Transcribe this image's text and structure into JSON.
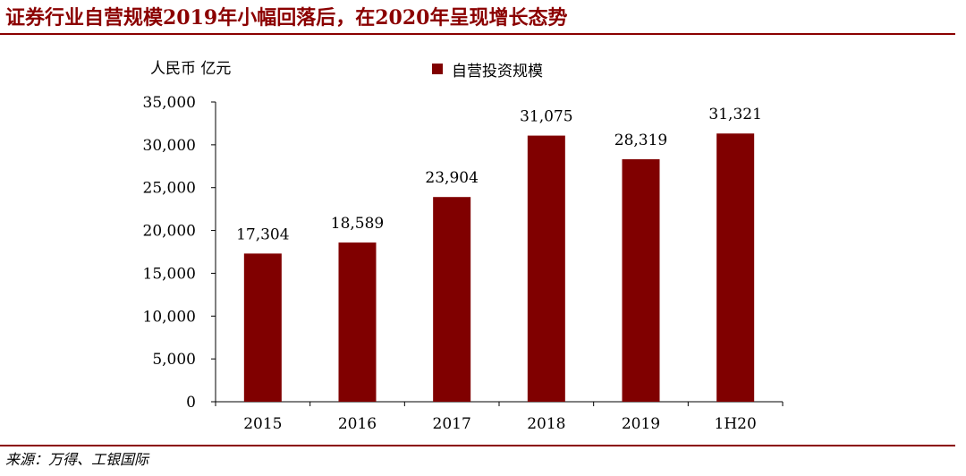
{
  "header": {
    "title": "证券行业自营规模2019年小幅回落后，在2020年呈现增长态势"
  },
  "footer": {
    "source": "来源：万得、工银国际"
  },
  "colors": {
    "accent": "#8b0000",
    "bar": "#800000"
  },
  "chart_data": {
    "type": "bar",
    "title": "证券行业自营规模2019年小幅回落后，在2020年呈现增长态势",
    "ylabel": "人民币 亿元",
    "xlabel": "",
    "categories": [
      "2015",
      "2016",
      "2017",
      "2018",
      "2019",
      "1H20"
    ],
    "series": [
      {
        "name": "自营投资规模",
        "values": [
          17304,
          18589,
          23904,
          31075,
          28319,
          31321
        ]
      }
    ],
    "data_labels": [
      "17,304",
      "18,589",
      "23,904",
      "31,075",
      "28,319",
      "31,321"
    ],
    "y_ticks": [
      0,
      5000,
      10000,
      15000,
      20000,
      25000,
      30000,
      35000
    ],
    "y_tick_labels": [
      "0",
      "5,000",
      "10,000",
      "15,000",
      "20,000",
      "25,000",
      "30,000",
      "35,000"
    ],
    "ylim": [
      0,
      35000
    ],
    "grid": false,
    "legend_position": "top-center"
  }
}
